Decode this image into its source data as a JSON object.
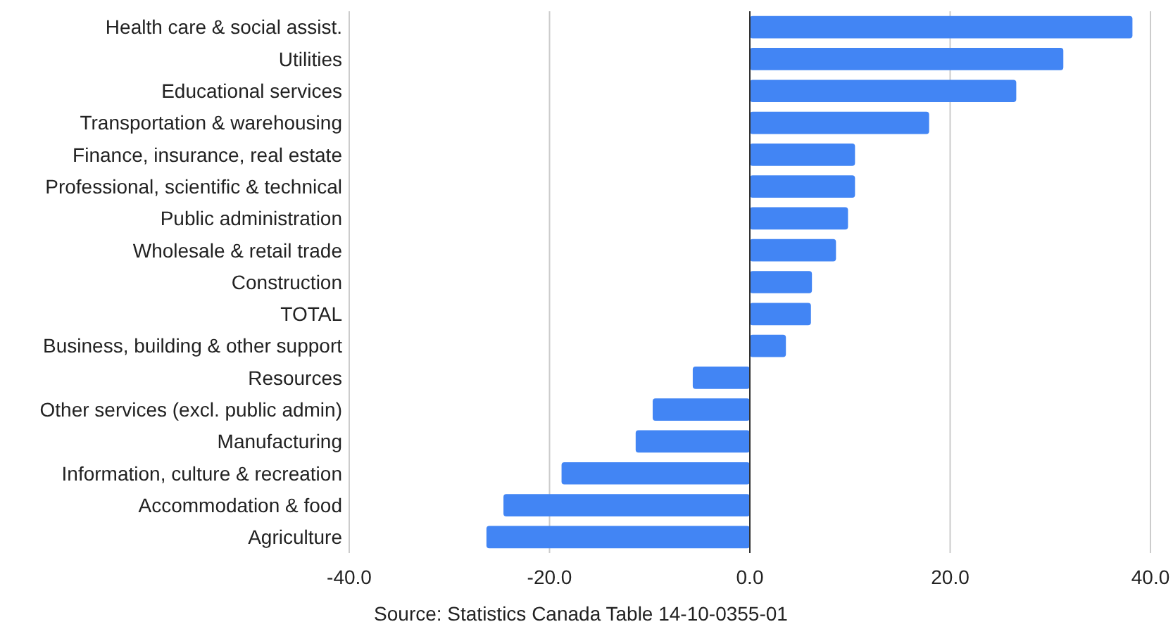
{
  "chart_data": {
    "type": "bar",
    "orientation": "horizontal",
    "categories": [
      "Health care & social assist.",
      "Utilities",
      "Educational services",
      "Transportation & warehousing",
      "Finance, insurance, real estate",
      "Professional, scientific & technical",
      "Public administration",
      "Wholesale & retail trade",
      "Construction",
      "TOTAL",
      "Business, building & other support",
      "Resources",
      "Other services (excl. public admin)",
      "Manufacturing",
      "Information, culture & recreation",
      "Accommodation & food",
      "Agriculture"
    ],
    "values": [
      38.2,
      31.3,
      26.6,
      17.9,
      10.5,
      10.5,
      9.8,
      8.6,
      6.2,
      6.1,
      3.6,
      -5.7,
      -9.7,
      -11.4,
      -18.8,
      -24.6,
      -26.3
    ],
    "color": "#4285f4",
    "xlim": [
      -40,
      40
    ],
    "xticks": [
      {
        "value": -40,
        "label": "-40.0"
      },
      {
        "value": -20,
        "label": "-20.0"
      },
      {
        "value": 0,
        "label": "0.0"
      },
      {
        "value": 20,
        "label": "20.0"
      },
      {
        "value": 40,
        "label": "40.0"
      }
    ],
    "grid": "x",
    "annotations": [
      "Source: Statistics Canada Table 14-10-0355-01"
    ]
  }
}
